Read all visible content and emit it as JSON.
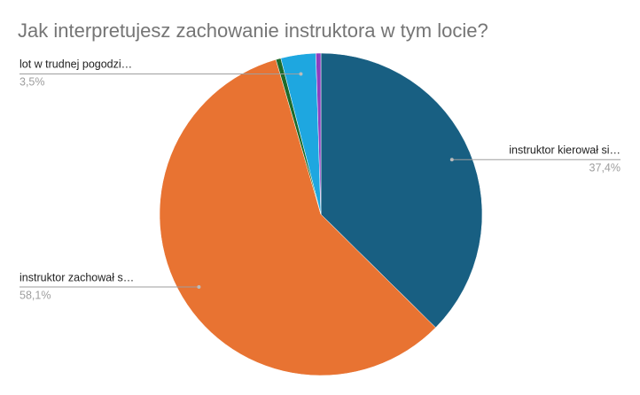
{
  "chart_data": {
    "type": "pie",
    "title": "Jak interpretujesz zachowanie instruktora w tym locie?",
    "categories": [
      "instruktor kierował si…",
      "instruktor zachował s…",
      null,
      "lot w trudnej pogodzi…",
      null
    ],
    "values": [
      37.4,
      58.1,
      0.5,
      3.5,
      0.5
    ],
    "value_labels": [
      "37,4%",
      "58,1%",
      null,
      "3,5%",
      null
    ],
    "colors": [
      "#185f82",
      "#e87332",
      "#1e6b2b",
      "#1ea7e0",
      "#8e3fbf"
    ]
  }
}
